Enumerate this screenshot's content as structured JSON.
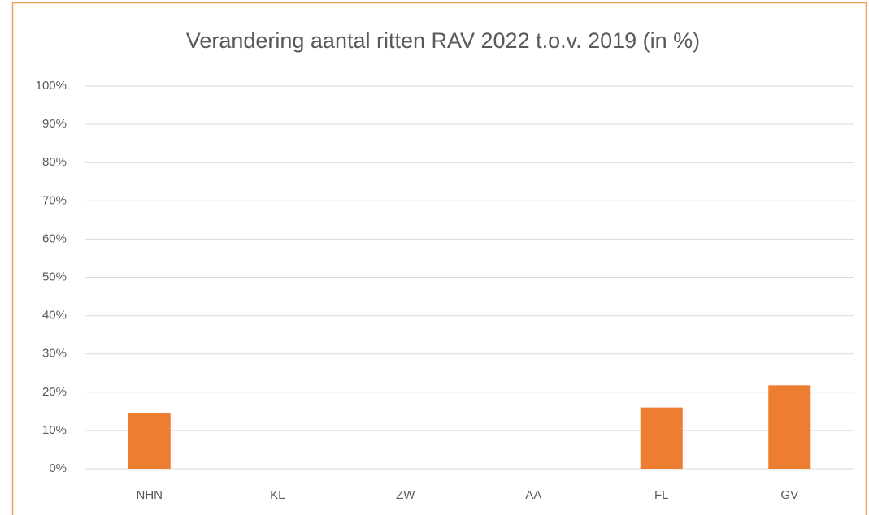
{
  "chart_data": {
    "type": "bar",
    "title": "Verandering aantal ritten RAV 2022 t.o.v. 2019 (in %)",
    "categories": [
      "NHN",
      "KL",
      "ZW",
      "AA",
      "FL",
      "GV"
    ],
    "values": [
      14.5,
      0,
      0,
      0,
      16,
      21.8
    ],
    "color": "#ed7d31",
    "ylim": [
      0,
      100
    ],
    "yticks": [
      {
        "value": 0,
        "label": "0%"
      },
      {
        "value": 10,
        "label": "10%"
      },
      {
        "value": 20,
        "label": "20%"
      },
      {
        "value": 30,
        "label": "30%"
      },
      {
        "value": 40,
        "label": "40%"
      },
      {
        "value": 50,
        "label": "50%"
      },
      {
        "value": 60,
        "label": "60%"
      },
      {
        "value": 70,
        "label": "70%"
      },
      {
        "value": 80,
        "label": "80%"
      },
      {
        "value": 90,
        "label": "90%"
      },
      {
        "value": 100,
        "label": "100%"
      }
    ],
    "grid": true
  }
}
